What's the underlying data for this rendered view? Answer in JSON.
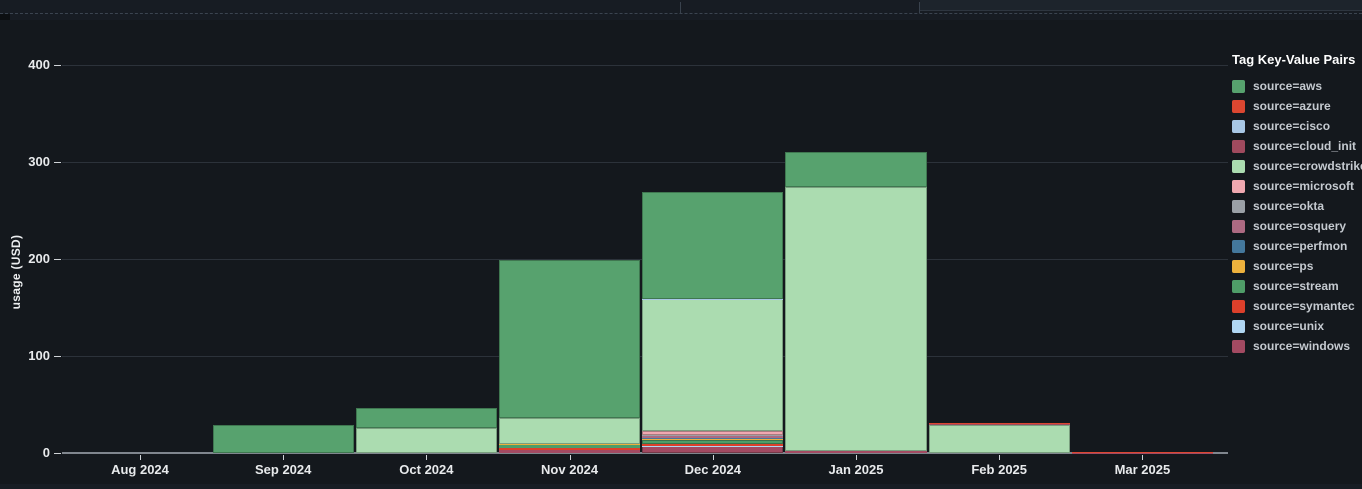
{
  "chart_data": {
    "type": "bar",
    "stacked": true,
    "ylabel": "usage (USD)",
    "legend_title": "Tag Key-Value Pairs",
    "categories": [
      "Aug 2024",
      "Sep 2024",
      "Oct 2024",
      "Nov 2024",
      "Dec 2024",
      "Jan 2025",
      "Feb 2025",
      "Mar 2025"
    ],
    "ylim": [
      0,
      420
    ],
    "yticks": [
      0,
      100,
      200,
      300,
      400
    ],
    "grid": true,
    "legend_position": "right",
    "series": [
      {
        "name": "source=aws",
        "key": "aws",
        "color": "#57a26e",
        "values": [
          0,
          29,
          20,
          163,
          110,
          36,
          0,
          0
        ]
      },
      {
        "name": "source=azure",
        "key": "azure",
        "color": "#dc4731",
        "values": [
          0,
          0,
          0,
          0,
          0,
          0,
          1,
          0.3
        ]
      },
      {
        "name": "source=cisco",
        "key": "cisco",
        "color": "#a8c7e5",
        "values": [
          0,
          0,
          0,
          0,
          0.5,
          0,
          0,
          0
        ]
      },
      {
        "name": "source=cloud_init",
        "key": "cloud_init",
        "color": "#a04a5e",
        "values": [
          0,
          0,
          0,
          0,
          0,
          0,
          1,
          0
        ]
      },
      {
        "name": "source=crowdstrike",
        "key": "crowdstrike",
        "color": "#abdcb0",
        "values": [
          0,
          0,
          26,
          27,
          136,
          272,
          29,
          0
        ]
      },
      {
        "name": "source=microsoft",
        "key": "microsoft",
        "color": "#f0a8b0",
        "values": [
          0,
          0,
          0,
          0,
          4,
          0,
          0,
          0
        ]
      },
      {
        "name": "source=okta",
        "key": "okta",
        "color": "#9aa0a6",
        "values": [
          0,
          0,
          0,
          0,
          1,
          0,
          0,
          0
        ]
      },
      {
        "name": "source=osquery",
        "key": "osquery",
        "color": "#ad6a82",
        "values": [
          0,
          0,
          0,
          0,
          2,
          0,
          0,
          0
        ]
      },
      {
        "name": "source=perfmon",
        "key": "perfmon",
        "color": "#44789c",
        "values": [
          0,
          0,
          0,
          0,
          1,
          0,
          0,
          0
        ]
      },
      {
        "name": "source=ps",
        "key": "ps",
        "color": "#edb13d",
        "values": [
          0,
          0,
          0,
          1,
          1.5,
          0,
          0,
          0
        ]
      },
      {
        "name": "source=stream",
        "key": "stream",
        "color": "#4f9d68",
        "values": [
          0,
          0,
          0,
          3,
          4,
          0,
          0,
          0
        ]
      },
      {
        "name": "source=symantec",
        "key": "symantec",
        "color": "#dd402b",
        "values": [
          0,
          0,
          0,
          2,
          1.5,
          0,
          0,
          0.7
        ]
      },
      {
        "name": "source=unix",
        "key": "unix",
        "color": "#b0d6f2",
        "values": [
          0,
          0,
          0,
          0,
          0.5,
          0,
          0,
          0
        ]
      },
      {
        "name": "source=windows",
        "key": "windows",
        "color": "#a34a62",
        "values": [
          0,
          0,
          0,
          3,
          7,
          2,
          0,
          0.5
        ]
      }
    ],
    "stack_order_bottom_to_top": [
      "windows",
      "unix",
      "symantec",
      "stream",
      "ps",
      "perfmon",
      "osquery",
      "okta",
      "microsoft",
      "crowdstrike",
      "cloud_init",
      "cisco",
      "azure",
      "aws"
    ]
  }
}
